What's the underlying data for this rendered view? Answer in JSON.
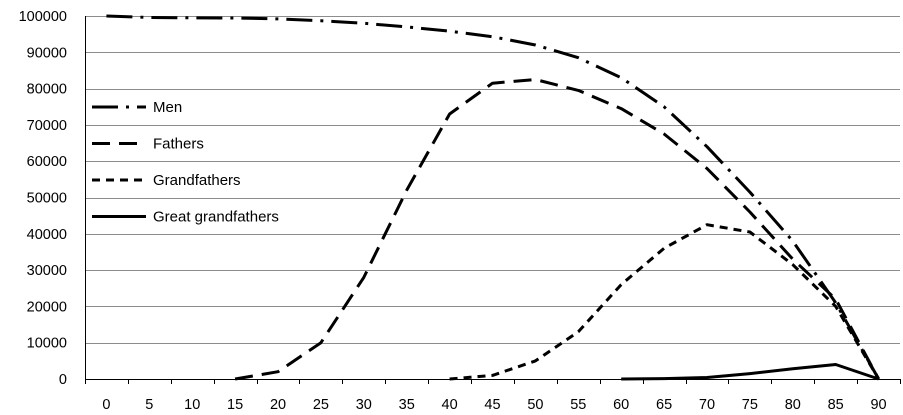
{
  "chart_data": {
    "type": "line",
    "categories": [
      "0",
      "5",
      "10",
      "15",
      "20",
      "25",
      "30",
      "35",
      "40",
      "45",
      "50",
      "55",
      "60",
      "65",
      "70",
      "75",
      "80",
      "85",
      "90"
    ],
    "ylim": [
      0,
      100000
    ],
    "yticks": [
      "0",
      "10000",
      "20000",
      "30000",
      "40000",
      "50000",
      "60000",
      "70000",
      "80000",
      "90000",
      "100000"
    ],
    "grid": true,
    "legend_position": "left",
    "series": [
      {
        "name": "Men",
        "dash": "long-dash-dot",
        "values": [
          100000,
          99600,
          99500,
          99450,
          99200,
          98700,
          98000,
          97000,
          95800,
          94300,
          92000,
          88500,
          83000,
          75000,
          64000,
          51500,
          38000,
          21000,
          0
        ]
      },
      {
        "name": "Fathers",
        "dash": "long-dash",
        "values": [
          null,
          null,
          null,
          0,
          2000,
          10000,
          28000,
          52000,
          73000,
          81500,
          82500,
          79500,
          74500,
          67500,
          58000,
          46000,
          33000,
          22000,
          0
        ]
      },
      {
        "name": "Grandfathers",
        "dash": "short-dash",
        "values": [
          null,
          null,
          null,
          null,
          null,
          null,
          null,
          null,
          0,
          1000,
          5000,
          13000,
          26000,
          36000,
          42500,
          40500,
          31500,
          20000,
          0
        ]
      },
      {
        "name": "Great grandfathers",
        "dash": "solid",
        "values": [
          null,
          null,
          null,
          null,
          null,
          null,
          null,
          null,
          null,
          null,
          null,
          null,
          0,
          100,
          400,
          1500,
          2800,
          4000,
          0
        ]
      }
    ]
  }
}
